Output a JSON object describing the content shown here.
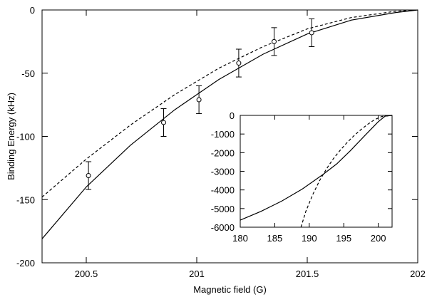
{
  "chart_data": [
    {
      "type": "scatter",
      "xlabel": "Magnetic field (G)",
      "ylabel": "Binding Energy (kHz)",
      "xlim": [
        200.3,
        202
      ],
      "ylim": [
        -200,
        0
      ],
      "xticks": [
        "200.5",
        "201",
        "201.5",
        "202"
      ],
      "yticks": [
        "0",
        "-50",
        "-100",
        "-150",
        "-200"
      ],
      "grid": false,
      "points": [
        {
          "x": 200.51,
          "y": -131,
          "err": 11
        },
        {
          "x": 200.85,
          "y": -89,
          "err": 11
        },
        {
          "x": 201.01,
          "y": -71,
          "err": 11
        },
        {
          "x": 201.19,
          "y": -42,
          "err": 11
        },
        {
          "x": 201.35,
          "y": -25,
          "err": 11
        },
        {
          "x": 201.52,
          "y": -18,
          "err": 11
        }
      ],
      "series": [
        {
          "style": "solid",
          "x": [
            200.3,
            200.5,
            200.7,
            200.9,
            201.1,
            201.3,
            201.5,
            201.7,
            201.9,
            202.0
          ],
          "y": [
            -181,
            -140,
            -107,
            -79,
            -55,
            -35,
            -19,
            -8,
            -2,
            0
          ]
        },
        {
          "style": "dashed",
          "x": [
            200.3,
            200.5,
            200.7,
            200.9,
            201.1,
            201.3,
            201.5,
            201.7,
            201.9,
            202.0
          ],
          "y": [
            -148,
            -118,
            -91,
            -67,
            -46,
            -29,
            -15,
            -6,
            -1,
            0
          ]
        }
      ]
    },
    {
      "type": "line",
      "xlim": [
        180,
        202
      ],
      "ylim": [
        -6000,
        0
      ],
      "xticks": [
        "180",
        "185",
        "190",
        "195",
        "200"
      ],
      "yticks": [
        "0",
        "-1000",
        "-2000",
        "-3000",
        "-4000",
        "-5000",
        "-6000"
      ],
      "grid": false,
      "series": [
        {
          "style": "solid",
          "x": [
            180,
            183,
            186,
            189,
            192,
            194,
            196,
            198,
            200,
            201,
            202
          ],
          "y": [
            -5620,
            -5150,
            -4600,
            -3950,
            -3170,
            -2600,
            -1880,
            -1100,
            -340,
            -40,
            0
          ]
        },
        {
          "style": "dashed",
          "x": [
            188.8,
            189.5,
            190.5,
            191.5,
            192.5,
            193.5,
            194.5,
            195.5,
            196.5,
            197.5,
            198.5,
            199.5,
            200.5,
            202
          ],
          "y": [
            -6000,
            -5150,
            -4250,
            -3500,
            -2870,
            -2320,
            -1860,
            -1450,
            -1080,
            -760,
            -470,
            -220,
            -60,
            0
          ]
        }
      ]
    }
  ]
}
